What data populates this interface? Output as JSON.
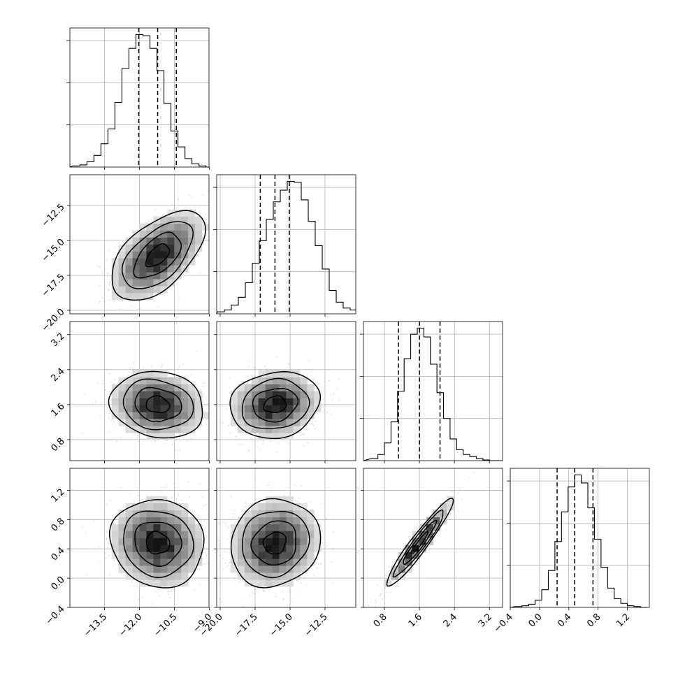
{
  "chart_data": {
    "type": "corner",
    "grid": true,
    "colors": {
      "line": "#000000",
      "grid": "#b0b0b0",
      "scatter": "#9a9a9a",
      "density_max": "#000000"
    },
    "parameters": [
      {
        "ticks": [
          -13.5,
          -12.0,
          -10.5,
          -9.0
        ],
        "tick_labels": [
          "−13.5",
          "−12.0",
          "−10.5",
          "−9.0"
        ],
        "range": [
          -14.98,
          -9.02
        ]
      },
      {
        "ticks": [
          -20.0,
          -17.5,
          -15.0,
          -12.5
        ],
        "tick_labels": [
          "−20.0",
          "−17.5",
          "−15.0",
          "−12.5"
        ],
        "range": [
          -20.25,
          -10.3
        ]
      },
      {
        "ticks": [
          0.8,
          1.6,
          2.4,
          3.2
        ],
        "tick_labels": [
          "0.8",
          "1.6",
          "2.4",
          "3.2"
        ],
        "range": [
          0.32,
          3.5
        ]
      },
      {
        "ticks": [
          -0.4,
          0.0,
          0.4,
          0.8,
          1.2
        ],
        "tick_labels": [
          "−0.4",
          "0.0",
          "0.4",
          "0.8",
          "1.2"
        ],
        "range": [
          -0.4,
          1.5
        ]
      }
    ],
    "marginals": [
      {
        "bin_start": -14.85,
        "bin_width": 0.3,
        "counts": [
          1,
          2,
          5,
          11,
          22,
          36,
          61,
          93,
          112,
          125,
          124,
          112,
          91,
          60,
          34,
          19,
          8,
          3,
          1,
          0
        ],
        "quantiles": [
          -12.03,
          -11.22,
          -10.42
        ]
      },
      {
        "bin_start": -20.2,
        "bin_width": 0.5,
        "counts": [
          2,
          4,
          9,
          17,
          32,
          52,
          75,
          97,
          115,
          127,
          136,
          135,
          117,
          95,
          70,
          46,
          24,
          12,
          6,
          4
        ],
        "quantiles": [
          -17.13,
          -16.08,
          -15.06
        ]
      },
      {
        "bin_start": 0.5,
        "bin_width": 0.15,
        "counts": [
          3,
          9,
          26,
          57,
          102,
          150,
          186,
          195,
          182,
          142,
          100,
          62,
          32,
          16,
          9,
          6,
          3,
          1,
          0,
          0
        ],
        "quantiles": [
          1.12,
          1.6,
          2.07
        ]
      },
      {
        "bin_start": -0.33,
        "bin_width": 0.09,
        "counts": [
          1,
          2,
          4,
          9,
          22,
          46,
          82,
          119,
          150,
          165,
          155,
          124,
          85,
          50,
          24,
          11,
          5,
          2,
          1,
          0
        ],
        "quantiles": [
          0.24,
          0.48,
          0.73
        ]
      }
    ],
    "joint_means": [
      -11.22,
      -16.08,
      1.6,
      0.48
    ],
    "joint_sigmas": [
      1.0,
      1.6,
      0.38,
      0.3
    ],
    "correlations": [
      [
        1,
        0.55,
        -0.12,
        -0.08
      ],
      [
        0.55,
        1,
        0.12,
        0.1
      ],
      [
        -0.12,
        0.12,
        1,
        0.95
      ],
      [
        -0.08,
        0.1,
        0.95,
        1
      ]
    ],
    "contour_levels_sigma": [
      0.5,
      1.0,
      1.5,
      2.0
    ]
  }
}
